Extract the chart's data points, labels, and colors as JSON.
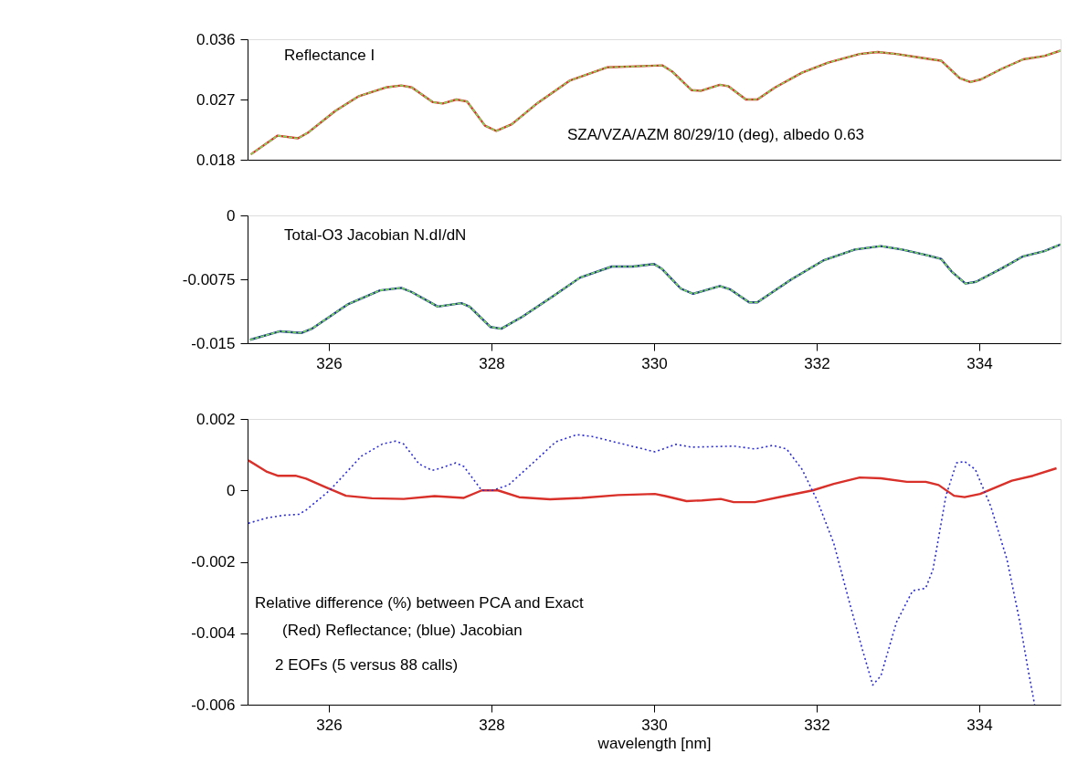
{
  "chart_data": [
    {
      "type": "line",
      "xlim": [
        325,
        335
      ],
      "xticks": [
        326,
        328,
        330,
        332,
        334
      ],
      "ylim": [
        0.018,
        0.036
      ],
      "yticks": [
        0.018,
        0.027,
        0.036
      ],
      "tick_labels": "y",
      "annotations": [
        "Reflectance I",
        "SZA/VZA/AZM 80/29/10 (deg), albedo 0.63"
      ],
      "x": [
        325.04,
        325.37,
        325.62,
        325.75,
        326.08,
        326.37,
        326.7,
        326.89,
        327.02,
        327.28,
        327.4,
        327.57,
        327.7,
        327.92,
        328.06,
        328.25,
        328.57,
        328.96,
        329.42,
        329.87,
        330.1,
        330.22,
        330.46,
        330.58,
        330.81,
        330.91,
        331.13,
        331.27,
        331.49,
        331.82,
        332.14,
        332.53,
        332.75,
        332.98,
        333.3,
        333.53,
        333.76,
        333.89,
        334.02,
        334.28,
        334.54,
        334.8,
        335.0
      ],
      "series": [
        {
          "color": "#d9302a",
          "line_style": "solid",
          "values": [
            0.0188,
            0.0216,
            0.0212,
            0.0221,
            0.0253,
            0.0275,
            0.0288,
            0.0291,
            0.0288,
            0.0266,
            0.0264,
            0.027,
            0.0267,
            0.0231,
            0.0223,
            0.0233,
            0.0265,
            0.0298,
            0.0318,
            0.032,
            0.0321,
            0.0312,
            0.0284,
            0.0283,
            0.0292,
            0.029,
            0.027,
            0.027,
            0.0288,
            0.031,
            0.0325,
            0.0338,
            0.0341,
            0.0338,
            0.0332,
            0.0328,
            0.0302,
            0.0296,
            0.03,
            0.0316,
            0.033,
            0.0335,
            0.0343
          ]
        },
        {
          "color": "#7ee05a",
          "line_style": "dashed",
          "values": [
            0.0188,
            0.0216,
            0.0212,
            0.0221,
            0.0253,
            0.0275,
            0.0288,
            0.0291,
            0.0288,
            0.0266,
            0.0264,
            0.027,
            0.0267,
            0.0231,
            0.0223,
            0.0233,
            0.0265,
            0.0298,
            0.0318,
            0.032,
            0.0321,
            0.0312,
            0.0284,
            0.0283,
            0.0292,
            0.029,
            0.027,
            0.027,
            0.0288,
            0.031,
            0.0325,
            0.0338,
            0.0341,
            0.0338,
            0.0332,
            0.0328,
            0.0302,
            0.0296,
            0.03,
            0.0316,
            0.033,
            0.0335,
            0.0343
          ]
        }
      ]
    },
    {
      "type": "line",
      "xlim": [
        325,
        335
      ],
      "xticks": [
        326,
        328,
        330,
        332,
        334
      ],
      "ylim": [
        -0.015,
        0
      ],
      "yticks": [
        -0.015,
        -0.0075,
        0
      ],
      "annotations": [
        "Total-O3 Jacobian N.dI/dN"
      ],
      "x": [
        325.03,
        325.4,
        325.66,
        325.79,
        326.24,
        326.63,
        326.89,
        327.02,
        327.34,
        327.63,
        327.73,
        327.99,
        328.12,
        328.38,
        328.77,
        329.09,
        329.48,
        329.74,
        330.0,
        330.1,
        330.33,
        330.48,
        330.81,
        330.94,
        331.17,
        331.27,
        331.69,
        332.08,
        332.47,
        332.79,
        333.05,
        333.37,
        333.53,
        333.66,
        333.83,
        333.96,
        334.28,
        334.54,
        334.8,
        335.0
      ],
      "series": [
        {
          "color": "#1f3a8a",
          "line_style": "solid",
          "values": [
            -0.0146,
            -0.0136,
            -0.0138,
            -0.0133,
            -0.0104,
            -0.0088,
            -0.0085,
            -0.009,
            -0.0107,
            -0.0103,
            -0.0107,
            -0.0131,
            -0.0133,
            -0.0119,
            -0.0094,
            -0.0073,
            -0.006,
            -0.006,
            -0.0057,
            -0.0063,
            -0.0086,
            -0.0092,
            -0.0083,
            -0.0087,
            -0.0102,
            -0.0102,
            -0.0075,
            -0.0053,
            -0.004,
            -0.0036,
            -0.004,
            -0.0047,
            -0.0051,
            -0.0066,
            -0.008,
            -0.0078,
            -0.0062,
            -0.0048,
            -0.0042,
            -0.0034
          ]
        },
        {
          "color": "#7ee05a",
          "line_style": "dashed",
          "values": [
            -0.0146,
            -0.0136,
            -0.0138,
            -0.0133,
            -0.0104,
            -0.0088,
            -0.0085,
            -0.009,
            -0.0107,
            -0.0103,
            -0.0107,
            -0.0131,
            -0.0133,
            -0.0119,
            -0.0094,
            -0.0073,
            -0.006,
            -0.006,
            -0.0057,
            -0.0063,
            -0.0086,
            -0.0092,
            -0.0083,
            -0.0087,
            -0.0102,
            -0.0102,
            -0.0075,
            -0.0053,
            -0.004,
            -0.0036,
            -0.004,
            -0.0047,
            -0.0051,
            -0.0066,
            -0.008,
            -0.0078,
            -0.0062,
            -0.0048,
            -0.0042,
            -0.0034
          ]
        }
      ]
    },
    {
      "type": "line",
      "xlim": [
        325,
        335
      ],
      "xticks": [
        326,
        328,
        330,
        332,
        334
      ],
      "ylim": [
        -0.006,
        0.002
      ],
      "yticks": [
        -0.006,
        -0.004,
        -0.002,
        0,
        0.002
      ],
      "xlabel": "wavelength [nm]",
      "annotations": [
        "Relative difference (%) between PCA and Exact",
        "(Red) Reflectance; (blue) Jacobian",
        "2 EOFs (5 versus 88 calls)"
      ],
      "series": [
        {
          "color": "#d9302a",
          "line_style": "solid",
          "x": [
            325.01,
            325.24,
            325.37,
            325.59,
            325.72,
            325.95,
            326.21,
            326.53,
            326.92,
            327.3,
            327.66,
            327.88,
            328.08,
            328.34,
            328.72,
            329.11,
            329.56,
            330.01,
            330.14,
            330.4,
            330.59,
            330.82,
            330.98,
            331.24,
            331.56,
            331.95,
            332.21,
            332.53,
            332.79,
            333.11,
            333.34,
            333.5,
            333.69,
            333.82,
            334.01,
            334.4,
            334.66,
            334.95
          ],
          "values": [
            0.00084,
            0.00052,
            0.00041,
            0.00041,
            0.00033,
            0.0001,
            -0.00015,
            -0.00022,
            -0.00024,
            -0.00016,
            -0.00021,
            0.0,
            0.0,
            -0.00019,
            -0.00025,
            -0.00021,
            -0.00013,
            -0.0001,
            -0.00016,
            -0.0003,
            -0.00028,
            -0.00024,
            -0.00033,
            -0.00033,
            -0.00018,
            0.0,
            0.00018,
            0.00036,
            0.00034,
            0.00024,
            0.00024,
            0.00015,
            -0.00015,
            -0.00019,
            -0.0001,
            0.00027,
            0.00041,
            0.00062
          ]
        },
        {
          "color": "#2b2bd6",
          "line_style": "dotted",
          "x": [
            325.01,
            325.24,
            325.43,
            325.63,
            325.72,
            326.01,
            326.4,
            326.66,
            326.82,
            326.92,
            327.11,
            327.27,
            327.37,
            327.56,
            327.66,
            327.88,
            328.01,
            328.21,
            328.53,
            328.79,
            329.05,
            329.24,
            329.56,
            330.01,
            330.27,
            330.46,
            330.98,
            331.24,
            331.46,
            331.63,
            331.82,
            332.01,
            332.21,
            332.4,
            332.56,
            332.69,
            332.79,
            332.98,
            333.18,
            333.34,
            333.43,
            333.59,
            333.72,
            333.82,
            333.95,
            334.14,
            334.34,
            334.5,
            334.59,
            334.68
          ],
          "values": [
            -0.00092,
            -0.00077,
            -0.0007,
            -0.00067,
            -0.00055,
            0.0,
            0.00096,
            0.0013,
            0.00138,
            0.0013,
            0.00074,
            0.00056,
            0.00062,
            0.00077,
            0.00067,
            0.0,
            0.0,
            0.00015,
            0.00081,
            0.00136,
            0.00156,
            0.00151,
            0.00133,
            0.00108,
            0.00129,
            0.00121,
            0.00124,
            0.00116,
            0.00126,
            0.00116,
            0.00059,
            -0.0003,
            -0.00148,
            -0.00311,
            -0.00444,
            -0.00545,
            -0.00519,
            -0.0037,
            -0.00281,
            -0.00274,
            -0.00222,
            -0.00015,
            0.00077,
            0.00081,
            0.00059,
            -0.00044,
            -0.00193,
            -0.0037,
            -0.00489,
            -0.006
          ]
        }
      ]
    }
  ]
}
